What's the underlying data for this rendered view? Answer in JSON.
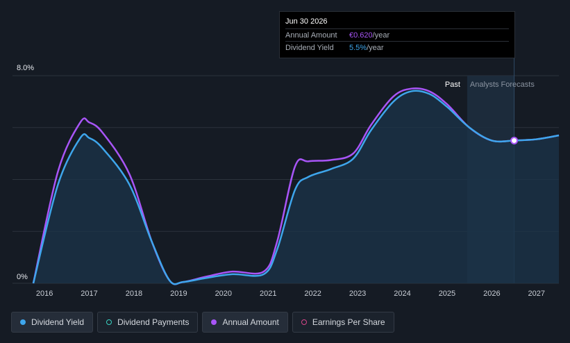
{
  "tooltip": {
    "date": "Jun 30 2026",
    "annual_amount_label": "Annual Amount",
    "annual_amount_value": "€0.620",
    "annual_amount_unit": "/year",
    "dividend_yield_label": "Dividend Yield",
    "dividend_yield_value": "5.5%",
    "dividend_yield_unit": "/year"
  },
  "regions": {
    "past": "Past",
    "forecast": "Analysts Forecasts"
  },
  "legend": [
    {
      "label": "Dividend Yield",
      "color": "#3ea6ec",
      "style": "filled",
      "active": true
    },
    {
      "label": "Dividend Payments",
      "color": "#39d3c2",
      "style": "hollow",
      "active": false
    },
    {
      "label": "Annual Amount",
      "color": "#a855f7",
      "style": "filled",
      "active": true
    },
    {
      "label": "Earnings Per Share",
      "color": "#d6458a",
      "style": "hollow",
      "active": false
    }
  ],
  "colors": {
    "background": "#151b24",
    "grid": "#2c333d",
    "yield_line": "#3ea6ec",
    "amount_line": "#a855f7",
    "area_fill": "#1b3449",
    "forecast_band": "#1d2e40"
  },
  "chart_data": {
    "type": "area",
    "x_ticks": [
      2016,
      2017,
      2018,
      2019,
      2020,
      2021,
      2022,
      2023,
      2024,
      2025,
      2026,
      2027
    ],
    "x_range": [
      2015.75,
      2027.5
    ],
    "y_range": [
      0,
      8.0
    ],
    "y_tick_labels": [
      "0%",
      "8.0%"
    ],
    "y_gridlines": [
      0,
      2,
      4,
      6,
      8
    ],
    "forecast_start": 2025.45,
    "highlight_x": 2026.5,
    "series": [
      {
        "name": "Dividend Yield",
        "x": [
          2015.75,
          2016.3,
          2016.8,
          2017.0,
          2017.3,
          2017.9,
          2018.4,
          2018.8,
          2019.1,
          2019.6,
          2020.2,
          2020.9,
          2021.2,
          2021.6,
          2021.9,
          2022.4,
          2022.9,
          2023.3,
          2023.8,
          2024.2,
          2024.6,
          2025.0,
          2025.5,
          2026.0,
          2026.5,
          2027.0,
          2027.5
        ],
        "y": [
          0.0,
          3.8,
          5.6,
          5.6,
          5.2,
          3.8,
          1.6,
          0.1,
          0.05,
          0.2,
          0.35,
          0.35,
          1.3,
          3.6,
          4.1,
          4.4,
          4.8,
          5.9,
          7.0,
          7.4,
          7.3,
          6.8,
          6.0,
          5.5,
          5.5,
          5.55,
          5.7
        ]
      },
      {
        "name": "Annual Amount",
        "x": [
          2015.75,
          2016.3,
          2016.8,
          2017.0,
          2017.3,
          2017.9,
          2018.4,
          2018.8,
          2019.1,
          2019.6,
          2020.2,
          2020.9,
          2021.2,
          2021.6,
          2021.9,
          2022.4,
          2022.9,
          2023.3,
          2023.8,
          2024.2,
          2024.6,
          2025.0,
          2025.5,
          2026.0,
          2026.5,
          2027.0,
          2027.5
        ],
        "y": [
          0.0,
          4.3,
          6.2,
          6.2,
          5.8,
          4.2,
          1.6,
          0.1,
          0.05,
          0.25,
          0.45,
          0.45,
          1.6,
          4.5,
          4.7,
          4.75,
          5.0,
          6.1,
          7.2,
          7.5,
          7.4,
          6.9,
          6.0,
          5.5,
          5.5,
          5.55,
          5.7
        ]
      }
    ]
  }
}
